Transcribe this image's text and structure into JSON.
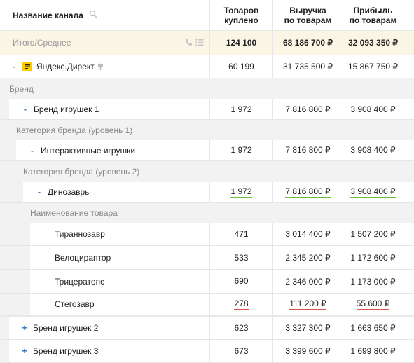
{
  "header": {
    "channel_name": "Название канала",
    "col1": "Товаров куплено",
    "col2": "Выручка по товарам",
    "col3": "Прибыль по товарам"
  },
  "total": {
    "label": "Итого/Среднее",
    "v1": "124 100",
    "v2": "68 186 700 ₽",
    "v3": "32 093 350 ₽"
  },
  "channel": {
    "toggle": "-",
    "label": "Яндекс.Директ",
    "v1": "60 199",
    "v2": "31 735 500 ₽",
    "v3": "15 867 750 ₽"
  },
  "group_brand": "Бренд",
  "brand1": {
    "toggle": "-",
    "label": "Бренд игрушек 1",
    "v1": "1 972",
    "v2": "7 816 800 ₽",
    "v3": "3 908 400 ₽"
  },
  "group_cat1": "Категория бренда (уровень 1)",
  "cat1": {
    "toggle": "-",
    "label": "Интерактивные игрушки",
    "v1": "1 972",
    "v2": "7 816 800 ₽",
    "v3": "3 908 400 ₽"
  },
  "group_cat2": "Категория бренда (уровень 2)",
  "cat2": {
    "toggle": "-",
    "label": "Динозавры",
    "v1": "1 972",
    "v2": "7 816 800 ₽",
    "v3": "3 908 400 ₽"
  },
  "group_product": "Наименование товара",
  "products": [
    {
      "label": "Тираннозавр",
      "v1": "471",
      "v2": "3 014 400 ₽",
      "v3": "1 507 200 ₽"
    },
    {
      "label": "Велоцираптор",
      "v1": "533",
      "v2": "2 345 200 ₽",
      "v3": "1 172 600 ₽"
    },
    {
      "label": "Трицератопс",
      "v1": "690",
      "v2": "2 346 000 ₽",
      "v3": "1 173 000 ₽"
    },
    {
      "label": "Стегозавр",
      "v1": "278",
      "v2": "111 200 ₽",
      "v3": "55 600 ₽"
    }
  ],
  "brand2": {
    "toggle": "+",
    "label": "Бренд игрушек 2",
    "v1": "623",
    "v2": "3 327 300 ₽",
    "v3": "1 663 650 ₽"
  },
  "brand3": {
    "toggle": "+",
    "label": "Бренд игрушек 3",
    "v1": "673",
    "v2": "3 399 600 ₽",
    "v3": "1 699 800 ₽"
  },
  "colors": {
    "accent": "#2d6cb5",
    "total_bg": "#fbf5e6",
    "group_bg": "#f2f2f2",
    "good": "#6abf3a",
    "bad": "#d9534f"
  }
}
